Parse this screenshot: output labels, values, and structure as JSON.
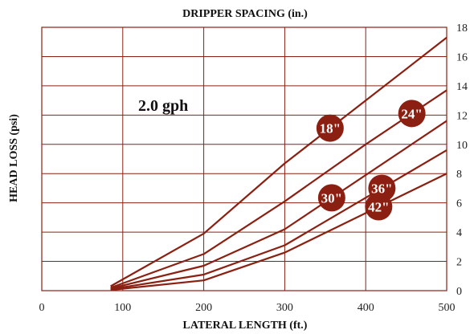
{
  "chart_data": {
    "type": "line",
    "title": "DRIPPER SPACING (in.)",
    "xlabel": "LATERAL LENGTH (ft.)",
    "ylabel": "HEAD LOSS (psi)",
    "annotation": "2.0 gph",
    "xlim": [
      0,
      500
    ],
    "ylim": [
      0,
      18
    ],
    "x_ticks": [
      "0",
      "100",
      "200",
      "300",
      "400",
      "500"
    ],
    "y_ticks": [
      "0",
      "2",
      "4",
      "6",
      "8",
      "10",
      "12",
      "14",
      "16",
      "18"
    ],
    "grid": true,
    "colors": {
      "line": "#8b2012",
      "badge": "#8b2012",
      "grid": "#8b2012"
    },
    "series": [
      {
        "name": "18\"",
        "x": [
          85,
          200,
          300,
          500
        ],
        "y": [
          0.3,
          3.9,
          8.7,
          17.3
        ]
      },
      {
        "name": "24\"",
        "x": [
          85,
          200,
          300,
          400,
          500
        ],
        "y": [
          0.2,
          2.5,
          6.1,
          10.0,
          13.7
        ]
      },
      {
        "name": "30\"",
        "x": [
          85,
          200,
          300,
          500
        ],
        "y": [
          0.15,
          1.7,
          4.2,
          11.6
        ]
      },
      {
        "name": "36\"",
        "x": [
          85,
          200,
          300,
          500
        ],
        "y": [
          0.1,
          1.1,
          3.1,
          9.6
        ]
      },
      {
        "name": "42\"",
        "x": [
          85,
          200,
          300,
          500
        ],
        "y": [
          0.05,
          0.7,
          2.6,
          8.0
        ]
      }
    ]
  }
}
